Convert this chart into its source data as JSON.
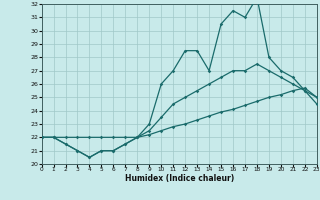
{
  "xlabel": "Humidex (Indice chaleur)",
  "bg_color": "#c8eaea",
  "grid_color": "#a0c8c8",
  "line_color": "#1a6b6b",
  "xlim": [
    0,
    23
  ],
  "ylim": [
    20,
    32
  ],
  "xticks": [
    0,
    1,
    2,
    3,
    4,
    5,
    6,
    7,
    8,
    9,
    10,
    11,
    12,
    13,
    14,
    15,
    16,
    17,
    18,
    19,
    20,
    21,
    22,
    23
  ],
  "yticks": [
    20,
    21,
    22,
    23,
    24,
    25,
    26,
    27,
    28,
    29,
    30,
    31,
    32
  ],
  "line1_x": [
    0,
    1,
    2,
    3,
    4,
    5,
    6,
    7,
    8,
    9,
    10,
    11,
    12,
    13,
    14,
    15,
    16,
    17,
    18,
    19,
    20,
    21,
    22,
    23
  ],
  "line1_y": [
    22,
    22,
    22,
    22,
    22,
    22,
    22,
    22,
    22,
    22.2,
    22.5,
    22.8,
    23,
    23.3,
    23.6,
    23.9,
    24.1,
    24.4,
    24.7,
    25,
    25.2,
    25.5,
    25.7,
    25
  ],
  "line2_x": [
    0,
    1,
    2,
    3,
    4,
    5,
    6,
    7,
    8,
    9,
    10,
    11,
    12,
    13,
    14,
    15,
    16,
    17,
    18,
    19,
    20,
    21,
    22,
    23
  ],
  "line2_y": [
    22,
    22,
    21.5,
    21,
    20.5,
    21,
    21,
    21.5,
    22,
    22.5,
    23.5,
    24.5,
    25,
    25.5,
    26,
    26.5,
    27,
    27,
    27.5,
    27,
    26.5,
    26,
    25.5,
    25
  ],
  "line3_x": [
    0,
    1,
    2,
    3,
    4,
    5,
    6,
    7,
    8,
    9,
    10,
    11,
    12,
    13,
    14,
    15,
    16,
    17,
    18,
    19,
    20,
    21,
    22,
    23
  ],
  "line3_y": [
    22,
    22,
    21.5,
    21,
    20.5,
    21,
    21,
    21.5,
    22,
    23,
    26,
    27,
    28.5,
    28.5,
    27,
    30.5,
    31.5,
    31,
    32.5,
    28,
    27,
    26.5,
    25.5,
    24.5
  ]
}
